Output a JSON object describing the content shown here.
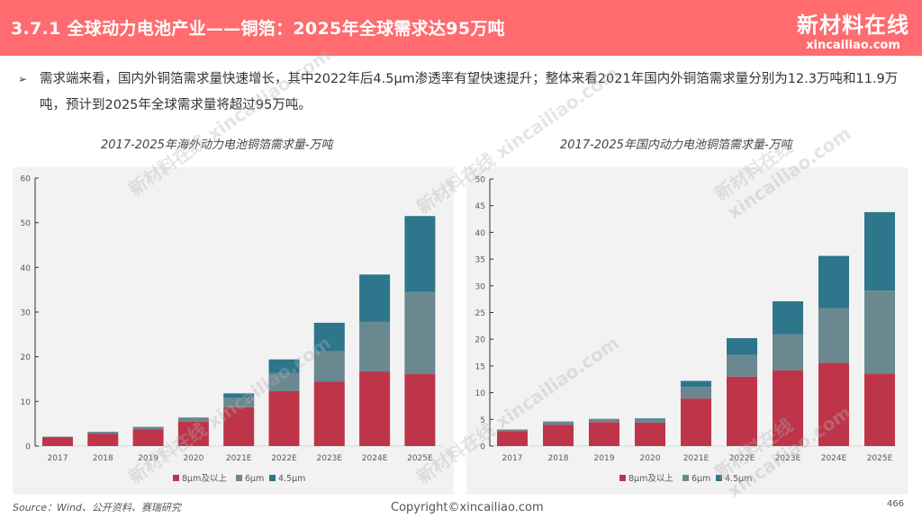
{
  "header": {
    "title": "3.7.1 全球动力电池产业——铜箔：2025年全球需求达95万吨",
    "logo_cn": "新材料在线",
    "logo_en": "xincailiao.com"
  },
  "bullet": {
    "icon": "arrow-bullet-icon",
    "text": "需求端来看，国内外铜箔需求量快速增长，其中2022年后4.5μm渗透率有望快速提升；整体来看2021年国内外铜箔需求量分别为12.3万吨和11.9万吨，预计到2025年全球需求量将超过95万吨。"
  },
  "footer": {
    "source": "Source：Wind、公开资料、赛瑞研究",
    "copyright": "Copyright©xincailiao.com",
    "page": "466"
  },
  "chart_data": [
    {
      "type": "bar",
      "stacked": true,
      "title": "2017-2025年海外动力电池铜箔需求量-万吨",
      "categories": [
        "2017",
        "2018",
        "2019",
        "2020",
        "2021E",
        "2022E",
        "2023E",
        "2024E",
        "2025E"
      ],
      "ylim": [
        0,
        60
      ],
      "yticks": [
        0,
        10,
        20,
        30,
        40,
        50,
        60
      ],
      "grid": false,
      "legend": "bottom",
      "series": [
        {
          "name": "8μm及以上",
          "color": "#be354a",
          "values": [
            2.0,
            2.8,
            3.8,
            5.5,
            8.7,
            12.3,
            14.4,
            16.7,
            16.1
          ]
        },
        {
          "name": "6μm",
          "color": "#6a8890",
          "values": [
            0.1,
            0.4,
            0.5,
            0.8,
            2.1,
            4.1,
            6.8,
            11.1,
            18.4
          ]
        },
        {
          "name": "4.5μm",
          "color": "#2e768c",
          "values": [
            0,
            0,
            0,
            0.1,
            1.0,
            3.0,
            6.4,
            10.6,
            17.0
          ]
        }
      ]
    },
    {
      "type": "bar",
      "stacked": true,
      "title": "2017-2025年国内动力电池铜箔需求量-万吨",
      "categories": [
        "2017",
        "2018",
        "2019",
        "2020",
        "2021E",
        "2022E",
        "2023E",
        "2024E",
        "2025E"
      ],
      "ylim": [
        0,
        50
      ],
      "yticks": [
        0,
        5,
        10,
        15,
        20,
        25,
        30,
        35,
        40,
        45,
        50
      ],
      "grid": false,
      "legend": "bottom",
      "series": [
        {
          "name": "8μm及以上",
          "color": "#be354a",
          "values": [
            2.8,
            4.0,
            4.5,
            4.4,
            8.9,
            13.0,
            14.2,
            15.6,
            13.6
          ]
        },
        {
          "name": "6μm",
          "color": "#6a8890",
          "values": [
            0.3,
            0.6,
            0.6,
            0.7,
            2.2,
            4.1,
            6.7,
            10.2,
            15.5
          ]
        },
        {
          "name": "4.5μm",
          "color": "#2e768c",
          "values": [
            0,
            0,
            0,
            0.1,
            1.1,
            3.1,
            6.2,
            9.8,
            14.7
          ]
        }
      ]
    }
  ]
}
